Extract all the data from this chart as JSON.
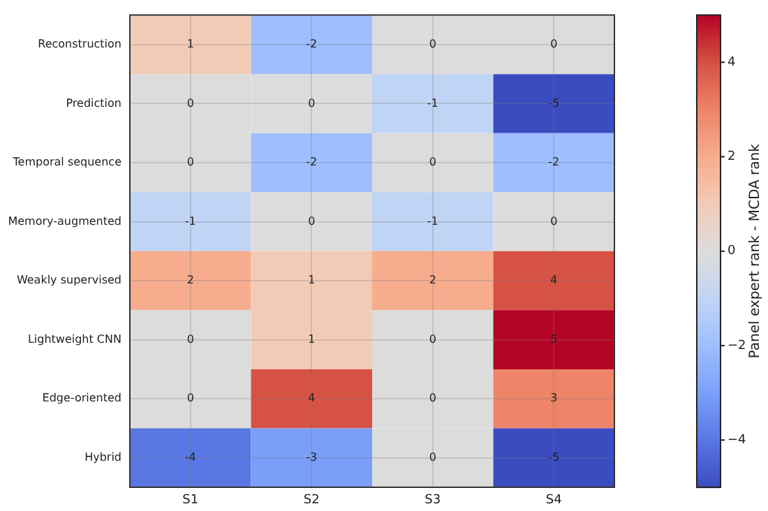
{
  "chart_data": {
    "type": "heatmap",
    "categories": [
      "S1",
      "S2",
      "S3",
      "S4"
    ],
    "y_categories": [
      "Reconstruction",
      "Prediction",
      "Temporal sequence",
      "Memory-augmented",
      "Weakly supervised",
      "Lightweight CNN",
      "Edge-oriented",
      "Hybrid"
    ],
    "cells": [
      [
        1,
        -2,
        0,
        0
      ],
      [
        0,
        0,
        -1,
        -5
      ],
      [
        0,
        -2,
        0,
        -2
      ],
      [
        -1,
        0,
        -1,
        0
      ],
      [
        2,
        1,
        2,
        4
      ],
      [
        0,
        1,
        0,
        5
      ],
      [
        0,
        4,
        0,
        3
      ],
      [
        -4,
        -3,
        0,
        -5
      ]
    ],
    "data_labels": true,
    "grid": true,
    "clabel": "Panel expert rank - MCDA rank",
    "clim": [
      -5,
      5
    ],
    "cticks": [
      -4,
      -2,
      0,
      2,
      4
    ]
  }
}
